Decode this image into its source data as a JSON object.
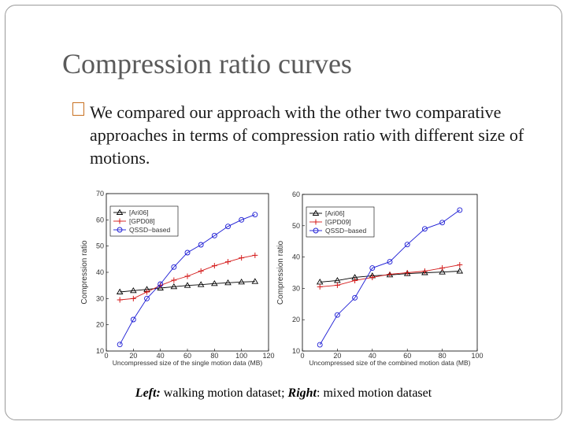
{
  "slide": {
    "title": "Compression ratio curves",
    "bullet_icon": "missing-glyph-box-icon",
    "bullet_text": "We compared our approach with the other two comparative approaches in terms of compression ratio with different size of motions.",
    "caption": {
      "left_label": "Left:",
      "left_text": " walking motion dataset; ",
      "right_label": "Right",
      "right_text": ": mixed motion dataset"
    }
  },
  "colors": {
    "ari06": "#000000",
    "gpd": "#d41a1a",
    "qssd": "#1a1ad4",
    "bullet_box": "#c87020"
  },
  "chart_data": [
    {
      "type": "line",
      "name": "left",
      "xlabel": "Uncompressed size of the single motion data (MB)",
      "ylabel": "Compression ratio",
      "xlim": [
        0,
        120
      ],
      "ylim": [
        10,
        70
      ],
      "xticks": [
        0,
        20,
        40,
        60,
        80,
        100,
        120
      ],
      "yticks": [
        10,
        20,
        30,
        40,
        50,
        60,
        70
      ],
      "legend_position": "top-left",
      "series": [
        {
          "name": "[Ari06]",
          "marker": "triangle",
          "color": "#000000",
          "x": [
            10,
            20,
            30,
            40,
            50,
            60,
            70,
            80,
            90,
            100,
            110
          ],
          "y": [
            32.5,
            33,
            33.5,
            34,
            34.5,
            35,
            35.3,
            35.7,
            36,
            36.3,
            36.5
          ]
        },
        {
          "name": "[GPD08]",
          "marker": "plus",
          "color": "#d41a1a",
          "x": [
            10,
            20,
            30,
            40,
            50,
            60,
            70,
            80,
            90,
            100,
            110
          ],
          "y": [
            29.5,
            30,
            32.5,
            35,
            37,
            38.5,
            40.5,
            42.5,
            44,
            45.5,
            46.5
          ]
        },
        {
          "name": "QSSD−based",
          "marker": "circle",
          "color": "#1a1ad4",
          "x": [
            10,
            20,
            30,
            40,
            50,
            60,
            70,
            80,
            90,
            100,
            110
          ],
          "y": [
            12.5,
            22,
            30,
            35.5,
            42,
            47.5,
            50.5,
            54,
            57.5,
            60,
            62
          ]
        }
      ]
    },
    {
      "type": "line",
      "name": "right",
      "xlabel": "Uncompressed size of the combined motion data (MB)",
      "ylabel": "Compression ratio",
      "xlim": [
        0,
        100
      ],
      "ylim": [
        10,
        60
      ],
      "xticks": [
        0,
        20,
        40,
        60,
        80,
        100
      ],
      "yticks": [
        10,
        20,
        30,
        40,
        50,
        60
      ],
      "legend_position": "top-left",
      "series": [
        {
          "name": "[Ari06]",
          "marker": "triangle",
          "color": "#000000",
          "x": [
            10,
            20,
            30,
            40,
            50,
            60,
            70,
            80,
            90
          ],
          "y": [
            32,
            32.5,
            33.5,
            34,
            34.3,
            34.7,
            35,
            35.2,
            35.5
          ]
        },
        {
          "name": "[GPD09]",
          "marker": "plus",
          "color": "#d41a1a",
          "x": [
            10,
            20,
            30,
            40,
            50,
            60,
            70,
            80,
            90
          ],
          "y": [
            30.5,
            31,
            32.5,
            33.5,
            34.5,
            35,
            35.5,
            36.5,
            37.5
          ]
        },
        {
          "name": "QSSD−based",
          "marker": "circle",
          "color": "#1a1ad4",
          "x": [
            10,
            20,
            30,
            40,
            50,
            60,
            70,
            80,
            90
          ],
          "y": [
            12,
            21.5,
            27,
            36.5,
            38.5,
            44,
            49,
            51,
            55
          ]
        }
      ]
    }
  ]
}
